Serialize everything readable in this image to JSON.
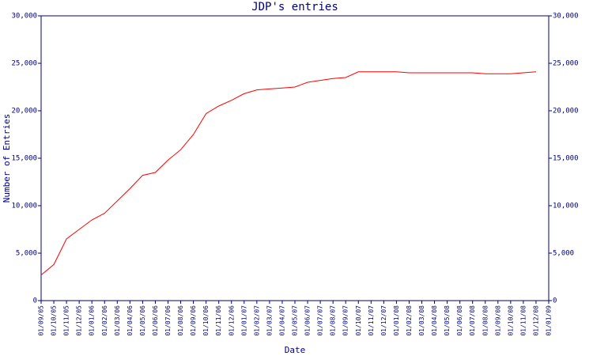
{
  "chart_data": {
    "type": "line",
    "title": "JDP's entries",
    "x_label": "Date",
    "y_label": "Number of Entries",
    "categories": [
      "01/09/05",
      "01/10/05",
      "01/11/05",
      "01/12/05",
      "01/01/06",
      "01/02/06",
      "01/03/06",
      "01/04/06",
      "01/05/06",
      "01/06/06",
      "01/07/06",
      "01/08/06",
      "01/09/06",
      "01/10/06",
      "01/11/06",
      "01/12/06",
      "01/01/07",
      "01/02/07",
      "01/03/07",
      "01/04/07",
      "01/05/07",
      "01/06/07",
      "01/07/07",
      "01/08/07",
      "01/09/07",
      "01/10/07",
      "01/11/07",
      "01/12/07",
      "01/01/08",
      "01/02/08",
      "01/03/08",
      "01/04/08",
      "01/05/08",
      "01/06/08",
      "01/07/08",
      "01/08/08",
      "01/09/08",
      "01/10/08",
      "01/11/08",
      "01/12/08",
      "01/01/09"
    ],
    "series": [
      {
        "name": "entries",
        "color": "#ff0000",
        "values": [
          2700,
          3800,
          6500,
          7500,
          8500,
          9200,
          10500,
          11800,
          13200,
          13500,
          14800,
          15900,
          17500,
          19700,
          20500,
          21100,
          21800,
          22200,
          22300,
          22400,
          22500,
          23000,
          23200,
          23400,
          23500,
          24100,
          24100,
          24100,
          24100,
          24000,
          24000,
          24000,
          24000,
          24000,
          24000,
          23900,
          23900,
          23900,
          24000,
          24100,
          null
        ]
      }
    ],
    "ylim": [
      0,
      30000
    ],
    "yticks": [
      0,
      {
        "value": 5000,
        "label": "5,000"
      },
      {
        "value": 10000,
        "label": "10,000"
      },
      {
        "value": 15000,
        "label": "15,000"
      },
      {
        "value": 20000,
        "label": "20,000"
      },
      {
        "value": 25000,
        "label": "25,000"
      },
      {
        "value": 30000,
        "label": "30,000"
      }
    ],
    "right_axis": true,
    "axis_color": "#000080"
  }
}
